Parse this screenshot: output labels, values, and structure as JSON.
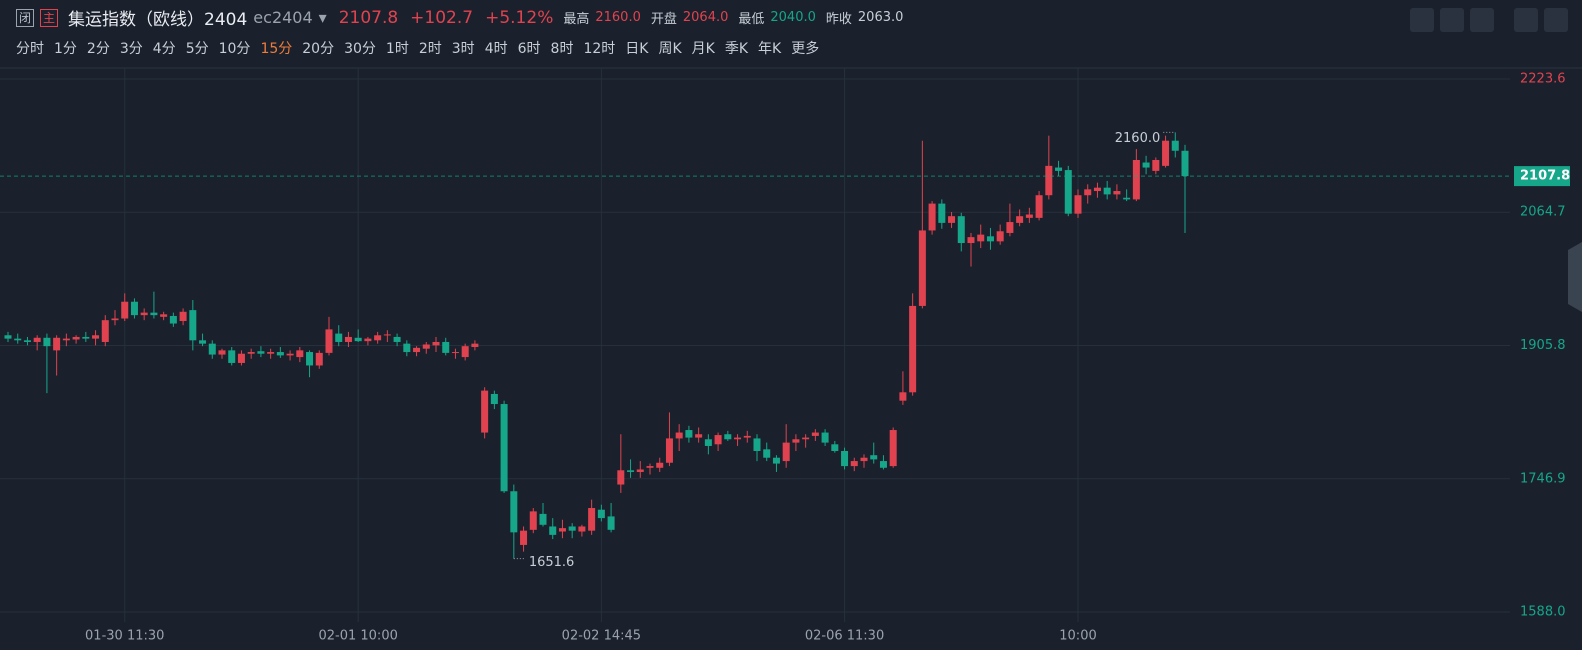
{
  "header": {
    "badges": [
      "闭",
      "主"
    ],
    "title": "集运指数（欧线）2404",
    "code": "ec2404",
    "price": "2107.8",
    "change": "+102.7",
    "change_pct": "+5.12%",
    "stats": [
      {
        "label": "最高",
        "value": "2160.0"
      },
      {
        "label": "开盘",
        "value": "2064.0"
      },
      {
        "label": "最低",
        "value": "2040.0"
      },
      {
        "label": "昨收",
        "value": "2063.0"
      }
    ]
  },
  "periods": [
    "分时",
    "1分",
    "2分",
    "3分",
    "4分",
    "5分",
    "10分",
    "15分",
    "20分",
    "30分",
    "1时",
    "2时",
    "3时",
    "4时",
    "6时",
    "8时",
    "12时",
    "日K",
    "周K",
    "月K",
    "季K",
    "年K",
    "更多"
  ],
  "chart_data": {
    "type": "candlestick",
    "up_color": "#e0434f",
    "down_color": "#16a68a",
    "grid": true,
    "categories": [
      null,
      null,
      null,
      null,
      null,
      null,
      null,
      null,
      null,
      null,
      null,
      null,
      "01-30 11:30",
      null,
      null,
      null,
      null,
      null,
      null,
      null,
      null,
      null,
      null,
      null,
      null,
      null,
      null,
      null,
      null,
      null,
      null,
      null,
      null,
      null,
      null,
      null,
      "02-01 10:00",
      null,
      null,
      null,
      null,
      null,
      null,
      null,
      null,
      null,
      null,
      null,
      null,
      null,
      null,
      null,
      null,
      null,
      null,
      null,
      null,
      null,
      null,
      null,
      null,
      "02-02 14:45",
      null,
      null,
      null,
      null,
      null,
      null,
      null,
      null,
      null,
      null,
      null,
      null,
      null,
      null,
      null,
      null,
      null,
      null,
      null,
      null,
      null,
      null,
      null,
      null,
      "02-06 11:30",
      null,
      null,
      null,
      null,
      null,
      null,
      null,
      null,
      null,
      null,
      null,
      null,
      null,
      null,
      null,
      null,
      null,
      null,
      null,
      null,
      null,
      null,
      null,
      "10:00",
      null,
      null,
      null,
      null,
      null,
      null,
      null,
      null,
      null,
      null,
      null
    ],
    "open": [
      1918,
      1914,
      1912,
      1910,
      1915,
      1900,
      1912,
      1913,
      1916,
      1914,
      1910,
      1936,
      1938,
      1958,
      1942,
      1945,
      1940,
      1941,
      1935,
      1948,
      1912,
      1908,
      1895,
      1900,
      1885,
      1896,
      1899,
      1896,
      1898,
      1894,
      1892,
      1898,
      1882,
      1897,
      1920,
      1910,
      1915,
      1911,
      1912,
      1918,
      1916,
      1908,
      1898,
      1902,
      1906,
      1910,
      1897,
      1892,
      1904,
      1802,
      1848,
      1836,
      1732,
      1668,
      1686,
      1705,
      1690,
      1684,
      1690,
      1684,
      1685,
      1710,
      1702,
      1740,
      1757,
      1755,
      1760,
      1760,
      1766,
      1795,
      1805,
      1796,
      1794,
      1788,
      1800,
      1794,
      1796,
      1795,
      1782,
      1772,
      1768,
      1790,
      1794,
      1798,
      1802,
      1788,
      1780,
      1762,
      1768,
      1775,
      1768,
      1762,
      1840,
      1850,
      1953,
      2043,
      2075,
      2052,
      2060,
      2028,
      2030,
      2036,
      2030,
      2040,
      2052,
      2058,
      2058,
      2085,
      2118,
      2115,
      2063,
      2085,
      2090,
      2094,
      2086,
      2082,
      2080,
      2124,
      2114,
      2120,
      2150,
      2138
    ],
    "high": [
      1922,
      1920,
      1916,
      1918,
      1920,
      1918,
      1920,
      1918,
      1922,
      1924,
      1942,
      1948,
      1968,
      1962,
      1950,
      1970,
      1946,
      1945,
      1950,
      1960,
      1920,
      1912,
      1902,
      1904,
      1900,
      1902,
      1905,
      1902,
      1904,
      1900,
      1904,
      1900,
      1900,
      1940,
      1930,
      1922,
      1925,
      1916,
      1922,
      1924,
      1920,
      1912,
      1905,
      1910,
      1916,
      1915,
      1902,
      1908,
      1912,
      1856,
      1852,
      1840,
      1740,
      1690,
      1712,
      1718,
      1700,
      1698,
      1694,
      1692,
      1722,
      1716,
      1718,
      1800,
      1770,
      1768,
      1765,
      1772,
      1826,
      1812,
      1810,
      1808,
      1800,
      1802,
      1804,
      1800,
      1804,
      1800,
      1790,
      1775,
      1812,
      1800,
      1800,
      1806,
      1806,
      1792,
      1784,
      1772,
      1776,
      1790,
      1775,
      1808,
      1875,
      1968,
      2150,
      2078,
      2080,
      2065,
      2064,
      2040,
      2050,
      2046,
      2050,
      2075,
      2068,
      2070,
      2090,
      2156,
      2126,
      2120,
      2092,
      2098,
      2100,
      2102,
      2098,
      2092,
      2140,
      2132,
      2130,
      2156,
      2160,
      2145
    ],
    "low": [
      1910,
      1908,
      1906,
      1900,
      1849,
      1870,
      1905,
      1908,
      1910,
      1906,
      1905,
      1930,
      1935,
      1938,
      1936,
      1938,
      1936,
      1928,
      1930,
      1900,
      1905,
      1890,
      1890,
      1882,
      1882,
      1890,
      1892,
      1890,
      1891,
      1888,
      1886,
      1868,
      1878,
      1894,
      1905,
      1904,
      1910,
      1906,
      1908,
      1910,
      1905,
      1893,
      1893,
      1896,
      1898,
      1894,
      1890,
      1888,
      1900,
      1795,
      1830,
      1730,
      1651.6,
      1660,
      1682,
      1690,
      1675,
      1676,
      1676,
      1678,
      1680,
      1696,
      1683,
      1730,
      1748,
      1748,
      1752,
      1755,
      1762,
      1780,
      1790,
      1790,
      1776,
      1780,
      1792,
      1786,
      1790,
      1768,
      1768,
      1755,
      1760,
      1780,
      1784,
      1792,
      1786,
      1778,
      1758,
      1756,
      1760,
      1765,
      1758,
      1760,
      1835,
      1846,
      1950,
      2038,
      2045,
      2046,
      2018,
      2000,
      2022,
      2020,
      2026,
      2036,
      2048,
      2052,
      2055,
      2080,
      2108,
      2060,
      2058,
      2075,
      2082,
      2080,
      2080,
      2078,
      2078,
      2110,
      2110,
      2118,
      2130,
      2040
    ],
    "close": [
      1914,
      1912,
      1910,
      1915,
      1905,
      1915,
      1914,
      1916,
      1914,
      1918,
      1936,
      1938,
      1958,
      1942,
      1945,
      1942,
      1943,
      1932,
      1946,
      1912,
      1908,
      1895,
      1900,
      1885,
      1896,
      1898,
      1896,
      1898,
      1894,
      1896,
      1900,
      1882,
      1897,
      1925,
      1910,
      1916,
      1911,
      1914,
      1918,
      1919,
      1910,
      1898,
      1903,
      1907,
      1910,
      1897,
      1898,
      1905,
      1908,
      1852,
      1836,
      1732,
      1683,
      1685,
      1708,
      1692,
      1680,
      1688,
      1685,
      1690,
      1712,
      1700,
      1686,
      1757,
      1755,
      1758,
      1762,
      1766,
      1795,
      1802,
      1796,
      1800,
      1786,
      1799,
      1794,
      1796,
      1798,
      1780,
      1772,
      1765,
      1790,
      1794,
      1796,
      1802,
      1790,
      1780,
      1762,
      1768,
      1772,
      1770,
      1760,
      1805,
      1850,
      1953,
      2043,
      2075,
      2052,
      2060,
      2028,
      2035,
      2038,
      2030,
      2042,
      2053,
      2060,
      2062,
      2085,
      2120,
      2114,
      2063,
      2085,
      2092,
      2094,
      2086,
      2090,
      2080,
      2127,
      2118,
      2127,
      2150,
      2138,
      2107.8
    ],
    "ylim": [
      1576.1,
      2236.7
    ],
    "yticks": [
      {
        "value": 1588,
        "label": "1588.0"
      },
      1746.9,
      1905.8,
      2064.7,
      2223.6
    ],
    "last_price": 2107.8,
    "max_label": {
      "value": 2160,
      "label": "2160.0"
    },
    "min_label": 1651.6
  }
}
